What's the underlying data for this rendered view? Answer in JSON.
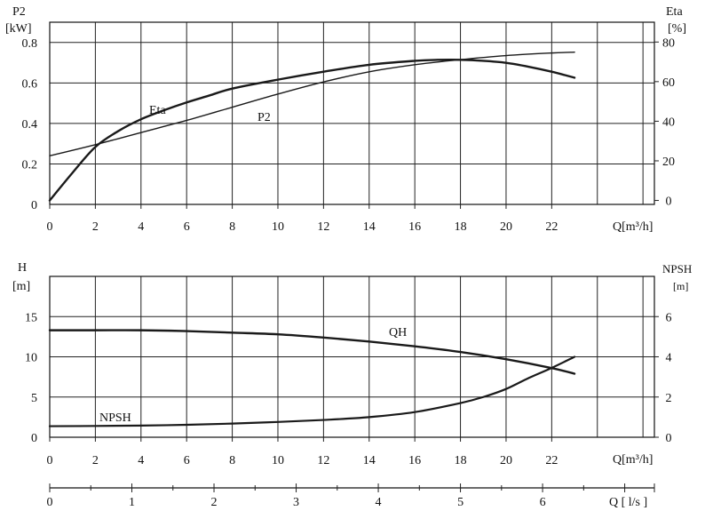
{
  "chart_data": [
    {
      "type": "line",
      "name": "power-efficiency",
      "x_label": "Q[m³/h]",
      "x_ticks": [
        0,
        2,
        4,
        6,
        8,
        10,
        12,
        14,
        16,
        18,
        20,
        22
      ],
      "xlim": [
        0,
        26.5
      ],
      "left_axis": {
        "label_line1": "P2",
        "label_line2": "[kW]",
        "ticks": [
          0,
          0.2,
          0.4,
          0.6,
          0.8
        ],
        "tick_labels": [
          "0",
          "0.2",
          "0.4",
          "0.6",
          "0.8"
        ],
        "ylim": [
          0,
          0.9
        ]
      },
      "right_axis": {
        "label_line1": "Eta",
        "label_line2": "[%]",
        "ticks": [
          0,
          20,
          40,
          60,
          80
        ],
        "ylim": [
          -2,
          90
        ]
      },
      "series": [
        {
          "name": "P2",
          "axis": "left",
          "x": [
            0,
            2,
            4,
            6,
            8,
            10,
            12,
            14,
            16,
            18,
            20,
            22,
            23
          ],
          "y": [
            0.24,
            0.295,
            0.355,
            0.415,
            0.48,
            0.545,
            0.605,
            0.655,
            0.69,
            0.715,
            0.735,
            0.748,
            0.752
          ]
        },
        {
          "name": "Eta",
          "axis": "right",
          "x": [
            0,
            1,
            2,
            3,
            4,
            5,
            6,
            7,
            8,
            10,
            12,
            14,
            16,
            17,
            18,
            19,
            20,
            21,
            22,
            23
          ],
          "y": [
            0,
            14,
            27,
            35,
            41,
            45.5,
            49.5,
            53,
            56.5,
            61,
            65,
            68.5,
            70.5,
            71,
            71,
            70.5,
            69.5,
            67.5,
            65,
            62
          ]
        }
      ]
    },
    {
      "type": "line",
      "name": "head-npsh",
      "x_label": "Q[m³/h]",
      "x_ticks": [
        0,
        2,
        4,
        6,
        8,
        10,
        12,
        14,
        16,
        18,
        20,
        22
      ],
      "xlim": [
        0,
        26.5
      ],
      "left_axis": {
        "label_line1": "H",
        "label_line2": "[m]",
        "ticks": [
          0,
          5,
          10,
          15
        ],
        "ylim": [
          0,
          20
        ]
      },
      "right_axis": {
        "label_line1": "NPSH",
        "label_line2": "[m]",
        "ticks": [
          0,
          2,
          4,
          6
        ],
        "ylim": [
          0,
          8
        ]
      },
      "series": [
        {
          "name": "QH",
          "axis": "left",
          "x": [
            0,
            2,
            4,
            6,
            8,
            10,
            12,
            14,
            16,
            18,
            20,
            22,
            23
          ],
          "y": [
            13.3,
            13.3,
            13.3,
            13.2,
            13.0,
            12.8,
            12.4,
            11.9,
            11.3,
            10.6,
            9.7,
            8.6,
            7.9
          ]
        },
        {
          "name": "NPSH",
          "axis": "right",
          "x": [
            0,
            2,
            4,
            6,
            8,
            10,
            12,
            14,
            16,
            18,
            19,
            20,
            21,
            22,
            23
          ],
          "y": [
            0.55,
            0.56,
            0.58,
            0.62,
            0.68,
            0.76,
            0.86,
            1.0,
            1.25,
            1.7,
            2.0,
            2.4,
            2.95,
            3.45,
            4.0
          ]
        }
      ]
    }
  ],
  "secondary_axis": {
    "label": "Q [ l/s ]",
    "ticks": [
      0,
      1,
      2,
      3,
      4,
      5,
      6
    ],
    "max": 7.3611
  },
  "colors": {
    "line": "#1a1a1a",
    "grid": "#222222",
    "background": "#ffffff"
  }
}
